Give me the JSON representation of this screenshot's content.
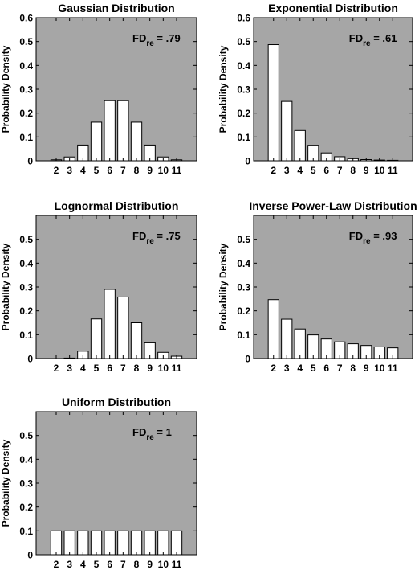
{
  "colors": {
    "plot_bg": "#a6a6a6",
    "bar_fill": "#ffffff",
    "bar_stroke": "#000000"
  },
  "chart_data": [
    {
      "type": "bar",
      "title": "Gaussian Distribution",
      "ylabel": "Probability Density",
      "annotation": {
        "base": "FD",
        "sub": "re",
        "value": " = .79"
      },
      "categories": [
        "2",
        "3",
        "4",
        "5",
        "6",
        "7",
        "8",
        "9",
        "10",
        "11"
      ],
      "values": [
        0.004,
        0.016,
        0.066,
        0.162,
        0.252,
        0.252,
        0.162,
        0.066,
        0.016,
        0.004
      ],
      "ylim": [
        0,
        0.6
      ],
      "yticks": [
        "0",
        "0.1",
        "0.2",
        "0.3",
        "0.4",
        "0.5",
        "0.6"
      ]
    },
    {
      "type": "bar",
      "title": "Exponential Distribution",
      "ylabel": "Probability Density",
      "annotation": {
        "base": "FD",
        "sub": "re",
        "value": " = .61"
      },
      "categories": [
        "2",
        "3",
        "4",
        "5",
        "6",
        "7",
        "8",
        "9",
        "10",
        "11"
      ],
      "values": [
        0.487,
        0.249,
        0.127,
        0.065,
        0.033,
        0.017,
        0.009,
        0.005,
        0.003,
        0.002
      ],
      "ylim": [
        0,
        0.6
      ],
      "yticks": [
        "0",
        "0.1",
        "0.2",
        "0.3",
        "0.4",
        "0.5",
        "0.6"
      ]
    },
    {
      "type": "bar",
      "title": "Lognormal Distribution",
      "ylabel": "Probability Density",
      "annotation": {
        "base": "FD",
        "sub": "re",
        "value": " = .75"
      },
      "categories": [
        "2",
        "3",
        "4",
        "5",
        "6",
        "7",
        "8",
        "9",
        "10",
        "11"
      ],
      "values": [
        0.0,
        0.002,
        0.031,
        0.166,
        0.29,
        0.258,
        0.15,
        0.066,
        0.026,
        0.01
      ],
      "ylim": [
        0,
        0.6
      ],
      "yticks": [
        "0",
        "0.1",
        "0.2",
        "0.3",
        "0.4",
        "0.5"
      ]
    },
    {
      "type": "bar",
      "title": "Inverse Power-Law Distribution",
      "ylabel": "Probability Density",
      "annotation": {
        "base": "FD",
        "sub": "re",
        "value": " = .93"
      },
      "categories": [
        "2",
        "3",
        "4",
        "5",
        "6",
        "7",
        "8",
        "9",
        "10",
        "11"
      ],
      "values": [
        0.247,
        0.165,
        0.124,
        0.099,
        0.082,
        0.07,
        0.062,
        0.055,
        0.049,
        0.045
      ],
      "ylim": [
        0,
        0.6
      ],
      "yticks": [
        "0",
        "0.1",
        "0.2",
        "0.3",
        "0.4",
        "0.5"
      ]
    },
    {
      "type": "bar",
      "title": "Uniform Distribution",
      "ylabel": "Probability Density",
      "annotation": {
        "base": "FD",
        "sub": "re",
        "value": " = 1"
      },
      "categories": [
        "2",
        "3",
        "4",
        "5",
        "6",
        "7",
        "8",
        "9",
        "10",
        "11"
      ],
      "values": [
        0.1,
        0.1,
        0.1,
        0.1,
        0.1,
        0.1,
        0.1,
        0.1,
        0.1,
        0.1
      ],
      "ylim": [
        0,
        0.6
      ],
      "yticks": [
        "0",
        "0.1",
        "0.2",
        "0.3",
        "0.4",
        "0.5"
      ]
    }
  ]
}
